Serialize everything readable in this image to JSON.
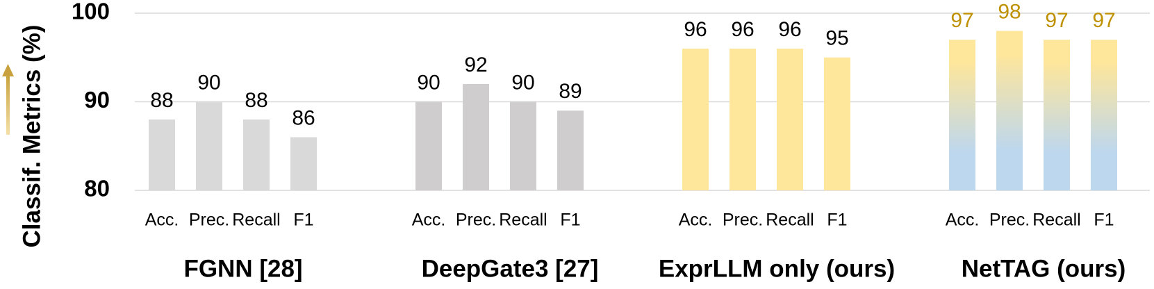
{
  "chart_data": {
    "type": "grouped-bar",
    "ylabel": "Classif. Metrics (%)",
    "ylim": [
      80,
      100
    ],
    "yticks": [
      80,
      90,
      100
    ],
    "grid": true,
    "groups": [
      {
        "name": "FGNN [28]",
        "categories": [
          "Acc.",
          "Prec.",
          "Recall",
          "F1"
        ],
        "values": [
          88,
          90,
          88,
          86
        ],
        "color": "#d9d9d9",
        "label_color": "#000000"
      },
      {
        "name": "DeepGate3 [27]",
        "categories": [
          "Acc.",
          "Prec.",
          "Recall",
          "F1"
        ],
        "values": [
          90,
          92,
          90,
          89
        ],
        "color": "#cfcdce",
        "label_color": "#000000"
      },
      {
        "name": "ExprLLM only (ours)",
        "categories": [
          "Acc.",
          "Prec.",
          "Recall",
          "F1"
        ],
        "values": [
          96,
          96,
          96,
          95
        ],
        "color": "#fee69b",
        "label_color": "#000000"
      },
      {
        "name": "NetTAG (ours)",
        "categories": [
          "Acc.",
          "Prec.",
          "Recall",
          "F1"
        ],
        "values": [
          97,
          98,
          97,
          97
        ],
        "color": [
          "#fee69b",
          "#bdd7ee"
        ],
        "label_color": "#bf9000"
      }
    ]
  }
}
